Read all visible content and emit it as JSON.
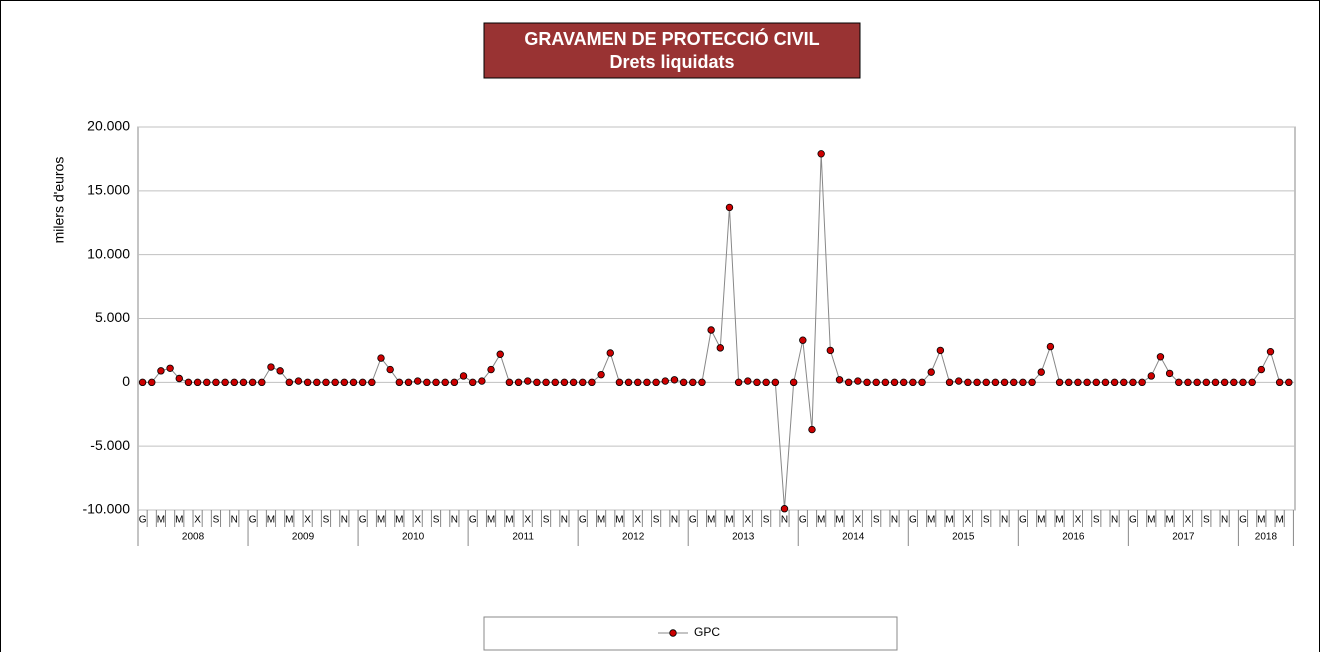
{
  "chart_data": {
    "type": "line",
    "title": "GRAVAMEN DE PROTECCIÓ CIVIL",
    "subtitle": "Drets liquidats",
    "y_label": "milers d'euros",
    "categories": [
      "G",
      null,
      "M",
      null,
      "M",
      null,
      "X",
      null,
      "S",
      null,
      "N",
      null,
      "G",
      null,
      "M",
      null,
      "M",
      null,
      "X",
      null,
      "S",
      null,
      "N",
      null,
      "G",
      null,
      "M",
      null,
      "M",
      null,
      "X",
      null,
      "S",
      null,
      "N",
      null,
      "G",
      null,
      "M",
      null,
      "M",
      null,
      "X",
      null,
      "S",
      null,
      "N",
      null,
      "G",
      null,
      "M",
      null,
      "M",
      null,
      "X",
      null,
      "S",
      null,
      "N",
      null,
      "G",
      null,
      "M",
      null,
      "M",
      null,
      "X",
      null,
      "S",
      null,
      "N",
      null,
      "G",
      null,
      "M",
      null,
      "M",
      null,
      "X",
      null,
      "S",
      null,
      "N",
      null,
      "G",
      null,
      "M",
      null,
      "M",
      null,
      "X",
      null,
      "S",
      null,
      "N",
      null,
      "G",
      null,
      "M",
      null,
      "M",
      null,
      "X",
      null,
      "S",
      null,
      "N",
      null,
      "G",
      null,
      "M",
      null,
      "M",
      null,
      "X",
      null,
      "S",
      null,
      "N",
      null,
      "G",
      null,
      "M",
      null,
      "M",
      null
    ],
    "years": [
      "2008",
      "2009",
      "2010",
      "2011",
      "2012",
      "2013",
      "2014",
      "2015",
      "2016",
      "2017",
      "2018"
    ],
    "series": [
      {
        "name": "GPC",
        "color": "#cc0000",
        "values": [
          0,
          0,
          900,
          1100,
          300,
          0,
          0,
          0,
          0,
          0,
          0,
          0,
          0,
          0,
          1200,
          900,
          0,
          100,
          0,
          0,
          0,
          0,
          0,
          0,
          0,
          0,
          1900,
          1000,
          0,
          0,
          100,
          0,
          0,
          0,
          0,
          500,
          0,
          100,
          1000,
          2200,
          0,
          0,
          100,
          0,
          0,
          0,
          0,
          0,
          0,
          0,
          600,
          2300,
          0,
          0,
          0,
          0,
          0,
          100,
          200,
          0,
          0,
          0,
          4100,
          2700,
          13700,
          0,
          100,
          0,
          0,
          0,
          -9900,
          0,
          3300,
          -3700,
          17900,
          2500,
          200,
          0,
          100,
          0,
          0,
          0,
          0,
          0,
          0,
          0,
          800,
          2500,
          0,
          100,
          0,
          0,
          0,
          0,
          0,
          0,
          0,
          0,
          800,
          2800,
          0,
          0,
          0,
          0,
          0,
          0,
          0,
          0,
          0,
          0,
          500,
          2000,
          700,
          0,
          0,
          0,
          0,
          0,
          0,
          0,
          0,
          0,
          1000,
          2400,
          0,
          0
        ]
      }
    ],
    "ylim": [
      -10000,
      20000
    ],
    "yticks": [
      {
        "value": -10000,
        "label": "-10.000"
      },
      {
        "value": -5000,
        "label": "-5.000"
      },
      0,
      {
        "value": 5000,
        "label": "5.000"
      },
      {
        "value": 10000,
        "label": "10.000"
      },
      {
        "value": 15000,
        "label": "15.000"
      },
      {
        "value": 20000,
        "label": "20.000"
      }
    ],
    "grid": true
  }
}
